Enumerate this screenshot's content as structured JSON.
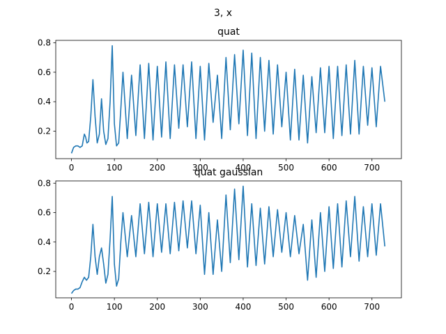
{
  "figure": {
    "suptitle": "3, x"
  },
  "chart_data": [
    {
      "type": "line",
      "title": "quat",
      "xlabel": "",
      "ylabel": "",
      "xlim": [
        -36.6,
        768.6
      ],
      "ylim": [
        0.0136,
        0.8162
      ],
      "xticks": [
        0,
        100,
        200,
        300,
        400,
        500,
        600,
        700
      ],
      "yticks": [
        0.2,
        0.4,
        0.6,
        0.8
      ],
      "ytick_labels": [
        "0.2",
        "0.4",
        "0.6",
        "0.8"
      ],
      "grid": false,
      "series": [
        {
          "name": "quat",
          "color": "#1f77b4",
          "x": [
            0,
            5,
            10,
            15,
            20,
            25,
            30,
            33,
            36,
            40,
            45,
            50,
            55,
            60,
            65,
            70,
            75,
            80,
            85,
            90,
            95,
            100,
            105,
            110,
            115,
            120,
            130,
            140,
            150,
            160,
            170,
            180,
            190,
            200,
            210,
            220,
            230,
            240,
            250,
            260,
            270,
            280,
            290,
            300,
            310,
            320,
            330,
            340,
            350,
            360,
            370,
            380,
            390,
            400,
            410,
            420,
            430,
            440,
            450,
            460,
            470,
            480,
            490,
            500,
            510,
            520,
            530,
            540,
            550,
            560,
            570,
            580,
            590,
            600,
            610,
            620,
            630,
            640,
            650,
            660,
            670,
            680,
            690,
            700,
            710,
            720,
            730
          ],
          "y": [
            0.05,
            0.09,
            0.1,
            0.1,
            0.09,
            0.1,
            0.18,
            0.16,
            0.12,
            0.13,
            0.3,
            0.55,
            0.3,
            0.12,
            0.18,
            0.42,
            0.2,
            0.11,
            0.15,
            0.4,
            0.78,
            0.25,
            0.1,
            0.12,
            0.35,
            0.6,
            0.15,
            0.58,
            0.17,
            0.65,
            0.15,
            0.66,
            0.14,
            0.64,
            0.16,
            0.67,
            0.15,
            0.65,
            0.22,
            0.65,
            0.23,
            0.67,
            0.15,
            0.64,
            0.14,
            0.66,
            0.26,
            0.58,
            0.15,
            0.7,
            0.21,
            0.72,
            0.25,
            0.75,
            0.17,
            0.73,
            0.15,
            0.7,
            0.2,
            0.68,
            0.18,
            0.65,
            0.23,
            0.6,
            0.14,
            0.62,
            0.14,
            0.58,
            0.12,
            0.57,
            0.19,
            0.63,
            0.19,
            0.64,
            0.15,
            0.64,
            0.17,
            0.65,
            0.18,
            0.68,
            0.18,
            0.64,
            0.24,
            0.63,
            0.23,
            0.64,
            0.4
          ]
        }
      ]
    },
    {
      "type": "line",
      "title": "quat gaussian",
      "xlabel": "",
      "ylabel": "",
      "xlim": [
        -36.6,
        768.6
      ],
      "ylim": [
        0.0205,
        0.8155
      ],
      "xticks": [
        0,
        100,
        200,
        300,
        400,
        500,
        600,
        700
      ],
      "yticks": [
        0.2,
        0.4,
        0.6,
        0.8
      ],
      "ytick_labels": [
        "0.2",
        "0.4",
        "0.6",
        "0.8"
      ],
      "grid": false,
      "series": [
        {
          "name": "quat gaussian",
          "color": "#1f77b4",
          "x": [
            0,
            5,
            10,
            15,
            20,
            25,
            30,
            35,
            40,
            45,
            50,
            55,
            60,
            65,
            70,
            75,
            80,
            85,
            90,
            95,
            100,
            105,
            110,
            115,
            120,
            130,
            140,
            150,
            160,
            170,
            180,
            190,
            200,
            210,
            220,
            230,
            240,
            250,
            260,
            270,
            280,
            290,
            300,
            310,
            320,
            330,
            340,
            350,
            360,
            370,
            380,
            390,
            400,
            410,
            420,
            430,
            440,
            450,
            460,
            470,
            480,
            490,
            500,
            510,
            520,
            530,
            540,
            550,
            560,
            570,
            580,
            590,
            600,
            610,
            620,
            630,
            640,
            650,
            660,
            670,
            680,
            690,
            700,
            710,
            720,
            730
          ],
          "y": [
            0.05,
            0.07,
            0.08,
            0.08,
            0.09,
            0.13,
            0.16,
            0.14,
            0.16,
            0.3,
            0.52,
            0.3,
            0.18,
            0.3,
            0.36,
            0.25,
            0.12,
            0.18,
            0.42,
            0.71,
            0.25,
            0.1,
            0.15,
            0.4,
            0.6,
            0.3,
            0.58,
            0.3,
            0.66,
            0.32,
            0.67,
            0.3,
            0.66,
            0.33,
            0.66,
            0.32,
            0.67,
            0.34,
            0.68,
            0.36,
            0.68,
            0.32,
            0.65,
            0.18,
            0.6,
            0.18,
            0.55,
            0.2,
            0.72,
            0.26,
            0.76,
            0.28,
            0.78,
            0.23,
            0.66,
            0.24,
            0.63,
            0.25,
            0.64,
            0.3,
            0.62,
            0.33,
            0.6,
            0.3,
            0.58,
            0.32,
            0.52,
            0.14,
            0.55,
            0.16,
            0.6,
            0.2,
            0.64,
            0.22,
            0.66,
            0.23,
            0.68,
            0.3,
            0.71,
            0.27,
            0.64,
            0.3,
            0.66,
            0.31,
            0.66,
            0.37
          ]
        }
      ]
    }
  ]
}
